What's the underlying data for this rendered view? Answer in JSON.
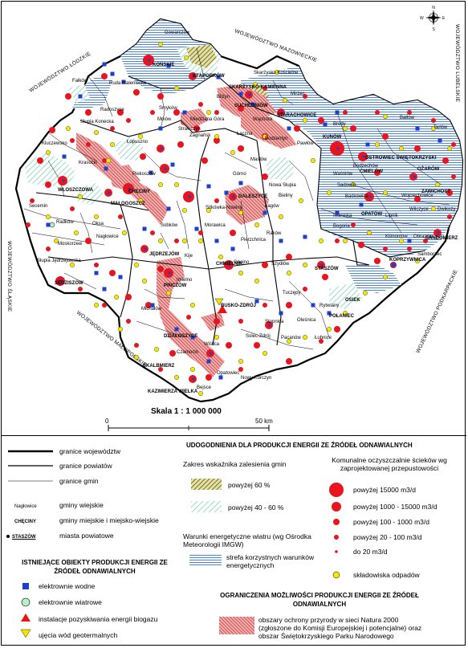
{
  "map": {
    "neighbors": {
      "lodzkie": "WOJEWÓDZTWO ŁÓDZKIE",
      "mazowieckie": "WOJEWÓDZTWO MAZOWIECKIE",
      "lubelskie": "WOJEWÓDZTWO LUBELSKIE",
      "slaskie": "WOJEWÓDZTWO ŚLĄSKIE",
      "malopolskie": "WOJEWÓDZTWO MAŁOPOLSKIE",
      "podkarpackie": "WOJEWÓDZTWO PODKARPACKIE"
    },
    "compass": {
      "n": "N",
      "s": "S",
      "e": "E",
      "w": "W"
    },
    "scale": {
      "title": "Skala 1 : 1 000 000",
      "zero": "0",
      "fifty": "50 km"
    },
    "powiat_towns": [
      "KOŃSKIE",
      "STĄPORKÓW",
      "SKARŻYSKO-KAMIENNA",
      "SUCHEDNIÓW",
      "STARACHOWICE",
      "KUNÓW",
      "OSTROWIEC ŚWIĘTOKRZYSKI",
      "ĆMIELÓW",
      "OŻARÓW",
      "ZAWICHOST",
      "OPATÓW",
      "SANDOMIERZ",
      "WŁOSZCZOWA",
      "CHĘCINY",
      "MAŁOGOSZCZ",
      "DALESZYCE",
      "JĘDRZEJÓW",
      "SĘDZISZÓW",
      "CHMIELNIK",
      "PIŃCZÓW",
      "STASZÓW",
      "OSIEK",
      "POŁANIEC",
      "BUSKO-ZDRÓJ",
      "DZIAŁOSZYCE",
      "SKALBMIERZ",
      "KAZIMIERZA WIELKA",
      "KOPRZYWNICA"
    ],
    "gmina_towns": [
      "Gowarczów",
      "Radoszyce",
      "Ruda Maleniecka",
      "Fałków",
      "Smyków",
      "Słupia Konecka",
      "Mniów",
      "Zagnańsk",
      "Bliżyn",
      "Łączna",
      "Mirzec",
      "Brody",
      "Pawłów",
      "Bałtów",
      "Tarłów",
      "Wąchock",
      "Skarżysko Kościelne",
      "Kluczewsko",
      "Krasocin",
      "Secemin",
      "Radków",
      "Moskorzew",
      "Słupia Jędrzejowska",
      "Oksa",
      "Nagłowice",
      "Sobków",
      "Kije",
      "Imielno",
      "Michałów",
      "Czarnocin",
      "Bejsce",
      "Opatowiec",
      "Wiślica",
      "Nowy Korczyn",
      "Solec-Zdrój",
      "Pacanów",
      "Stopnica",
      "Gnojno",
      "Tuczępy",
      "Rytwiany",
      "Szydłów",
      "Oleśnica",
      "Łubnice",
      "Bogoria",
      "Iwaniska",
      "Lipnik",
      "Klimontów",
      "Obrazów",
      "Samborzec",
      "Dwikozy",
      "Wilczyce",
      "Wojciechowice",
      "Baćkowice",
      "Sadowie",
      "Waśniów",
      "Bodzechów",
      "Raków",
      "Łagów",
      "Bieliny",
      "Nowa Słupia",
      "Górno",
      "Masłów",
      "Miedziana Góra",
      "Strawczyn",
      "Łopuszno",
      "Piekoszów",
      "Sitkówka-Nowiny",
      "Morawica",
      "Pierzchnica",
      "Bodzentyn"
    ]
  },
  "legend": {
    "lines": [
      {
        "label": "granice województw"
      },
      {
        "label": "granice powiatów"
      },
      {
        "label": "granice gmin"
      }
    ],
    "town_types": [
      {
        "sample": "Nagłowice",
        "label": "gminy wiejskie"
      },
      {
        "sample": "CHĘCINY",
        "label": "gminy miejskie i miejsko-wiejskie"
      },
      {
        "sample": "STASZÓW",
        "label": "miasta powiatowe"
      }
    ],
    "existing_title": "ISTNIEJĄCE OBIEKTY PRODUKCJI ENERGII ZE ŹRÓDEŁ ODNAWIALNYCH",
    "existing": [
      {
        "label": "elektrownie wodne",
        "color": "#1f3fcf"
      },
      {
        "label": "elektrownie wiatrowe",
        "color": "#b6f0c8"
      },
      {
        "label": "instalacje pozyskiwania energii biogazu",
        "color": "#ee1111"
      },
      {
        "label": "ujęcia wód geotermalnych",
        "color": "#f2e400"
      }
    ],
    "facilities_title": "UDOGODNIENIA DLA PRODUKCJI ENERGII ZE ŹRÓDEŁ ODNAWIALNYCH",
    "forest_title": "Zakres wskaźnika zalesienia gmin",
    "forest": [
      {
        "label": "powyżej 60 %"
      },
      {
        "label": "powyżej 40 - 60 %"
      }
    ],
    "wind_title": "Warunki energetyczne wiatru (wg Ośrodka Meteorologii IMGW)",
    "wind_label": "strefa korzystnych warunków energetycznych",
    "sewage_title": "Komunalne oczyszczalnie ścieków wg zaprojektowanej przepustowości",
    "sewage": [
      {
        "label": "powyżej 15000 m3/d"
      },
      {
        "label": "powyżej 1000 - 15000 m3/d"
      },
      {
        "label": "powyżej 100 - 1000 m3/d"
      },
      {
        "label": "powyżej 20 - 100 m3/d"
      },
      {
        "label": "do 20 m3/d"
      }
    ],
    "waste_label": "składowiska odpadów",
    "limits_title": "OGRANICZENIA MOŻLIWOŚCI PRODUKCJI ENERGII ZE ŹRÓDEŁ ODNAWIALNYCH",
    "limits_label": "obszary ochrony przyrody w sieci Natura 2000 (zgłoszone do Komisji Europejskiej i potencjalne) oraz obszar Świętokrzyskiego Parku Narodowego",
    "colors": {
      "red": "#e8141e",
      "yellow": "#f5e800",
      "blue": "#1f3fcf",
      "wind": "#3a78d8",
      "forest": "#8ad8c0",
      "natura": "#cc3333",
      "forest60": "#556b2f"
    }
  }
}
